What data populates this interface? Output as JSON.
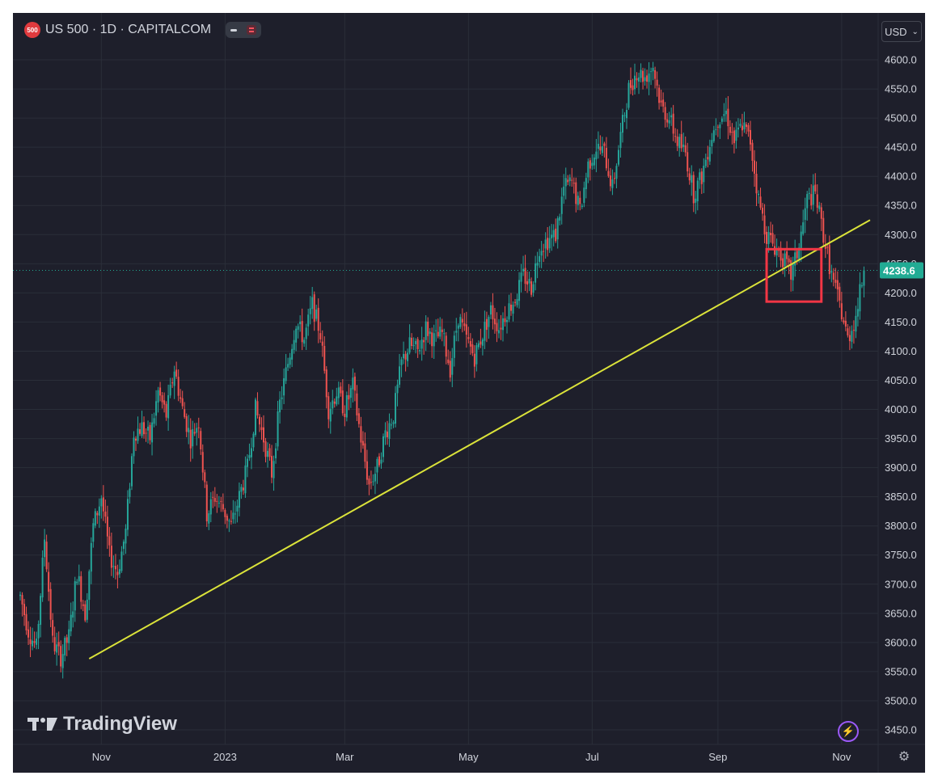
{
  "header": {
    "symbol_badge": "500",
    "title": "US 500 · 1D · CAPITALCOM"
  },
  "currency": {
    "label": "USD"
  },
  "branding": {
    "name": "TradingView"
  },
  "icons": {
    "lightning": "lightning-icon",
    "settings": "gear-icon",
    "dropdown": "chevron-down-icon"
  },
  "colors": {
    "background": "#1e1f2b",
    "up": "#26a69a",
    "down": "#ef5350",
    "trendline": "#dbe33a",
    "highlight": "#f23645",
    "price_label": "#22ab94"
  },
  "chart_data": {
    "type": "candlestick",
    "title": "US 500 · 1D · CAPITALCOM",
    "ylim": [
      3425,
      4625
    ],
    "yticks": [
      3450,
      3500,
      3550,
      3600,
      3650,
      3700,
      3750,
      3800,
      3850,
      3900,
      3950,
      4000,
      4050,
      4100,
      4150,
      4200,
      4250,
      4300,
      4350,
      4400,
      4450,
      4500,
      4550,
      4600
    ],
    "ytick_labels": [
      "3450.0",
      "3500.0",
      "3550.0",
      "3600.0",
      "3650.0",
      "3700.0",
      "3750.0",
      "3800.0",
      "3850.0",
      "3900.0",
      "3950.0",
      "4000.0",
      "4050.0",
      "4100.0",
      "4150.0",
      "4200.0",
      "4250.0",
      "4300.0",
      "4350.0",
      "4400.0",
      "4450.0",
      "4500.0",
      "4550.0",
      "4600.0"
    ],
    "xtick_labels": [
      "Nov",
      "2023",
      "Mar",
      "May",
      "Jul",
      "Sep",
      "Nov"
    ],
    "xtick_days": [
      40,
      101,
      160,
      221,
      282,
      344,
      405
    ],
    "x_start_label": "2022-09-22",
    "last_price": 4238.6,
    "last_price_label": "4238.6",
    "trendline": {
      "from": {
        "day": 34,
        "price": 3572
      },
      "to": {
        "day": 419,
        "price": 4325
      }
    },
    "highlight_box": {
      "day_from": 368,
      "day_to": 395,
      "price_low": 4185,
      "price_high": 4275
    },
    "grid": true,
    "closes": [
      [
        0,
        3680
      ],
      [
        4,
        3620
      ],
      [
        8,
        3590
      ],
      [
        12,
        3780
      ],
      [
        16,
        3600
      ],
      [
        20,
        3575
      ],
      [
        24,
        3610
      ],
      [
        28,
        3720
      ],
      [
        32,
        3650
      ],
      [
        36,
        3800
      ],
      [
        40,
        3850
      ],
      [
        44,
        3750
      ],
      [
        48,
        3720
      ],
      [
        52,
        3790
      ],
      [
        56,
        3960
      ],
      [
        60,
        3970
      ],
      [
        64,
        3950
      ],
      [
        68,
        4030
      ],
      [
        72,
        3990
      ],
      [
        76,
        4070
      ],
      [
        80,
        4000
      ],
      [
        84,
        3950
      ],
      [
        88,
        3980
      ],
      [
        92,
        3820
      ],
      [
        96,
        3850
      ],
      [
        100,
        3830
      ],
      [
        104,
        3800
      ],
      [
        108,
        3850
      ],
      [
        112,
        3900
      ],
      [
        116,
        4000
      ],
      [
        120,
        3950
      ],
      [
        124,
        3890
      ],
      [
        128,
        4010
      ],
      [
        132,
        4080
      ],
      [
        136,
        4150
      ],
      [
        140,
        4120
      ],
      [
        144,
        4180
      ],
      [
        148,
        4130
      ],
      [
        152,
        4000
      ],
      [
        156,
        4030
      ],
      [
        160,
        4000
      ],
      [
        164,
        4040
      ],
      [
        168,
        3950
      ],
      [
        172,
        3870
      ],
      [
        176,
        3900
      ],
      [
        180,
        3960
      ],
      [
        184,
        3990
      ],
      [
        188,
        4080
      ],
      [
        192,
        4110
      ],
      [
        196,
        4100
      ],
      [
        200,
        4140
      ],
      [
        204,
        4120
      ],
      [
        208,
        4130
      ],
      [
        212,
        4070
      ],
      [
        216,
        4160
      ],
      [
        220,
        4120
      ],
      [
        224,
        4090
      ],
      [
        228,
        4130
      ],
      [
        232,
        4170
      ],
      [
        236,
        4140
      ],
      [
        240,
        4170
      ],
      [
        244,
        4190
      ],
      [
        248,
        4230
      ],
      [
        252,
        4210
      ],
      [
        256,
        4280
      ],
      [
        260,
        4290
      ],
      [
        264,
        4300
      ],
      [
        268,
        4380
      ],
      [
        272,
        4390
      ],
      [
        276,
        4340
      ],
      [
        280,
        4420
      ],
      [
        284,
        4450
      ],
      [
        288,
        4440
      ],
      [
        292,
        4380
      ],
      [
        296,
        4470
      ],
      [
        300,
        4550
      ],
      [
        304,
        4580
      ],
      [
        308,
        4570
      ],
      [
        312,
        4590
      ],
      [
        316,
        4520
      ],
      [
        320,
        4500
      ],
      [
        324,
        4460
      ],
      [
        328,
        4440
      ],
      [
        332,
        4370
      ],
      [
        336,
        4400
      ],
      [
        340,
        4460
      ],
      [
        344,
        4500
      ],
      [
        348,
        4510
      ],
      [
        352,
        4460
      ],
      [
        356,
        4490
      ],
      [
        360,
        4460
      ],
      [
        364,
        4360
      ],
      [
        368,
        4300
      ],
      [
        372,
        4280
      ],
      [
        376,
        4260
      ],
      [
        380,
        4230
      ],
      [
        384,
        4280
      ],
      [
        388,
        4360
      ],
      [
        392,
        4370
      ],
      [
        396,
        4300
      ],
      [
        400,
        4230
      ],
      [
        404,
        4180
      ],
      [
        408,
        4120
      ],
      [
        412,
        4160
      ],
      [
        416,
        4238.6
      ]
    ]
  }
}
